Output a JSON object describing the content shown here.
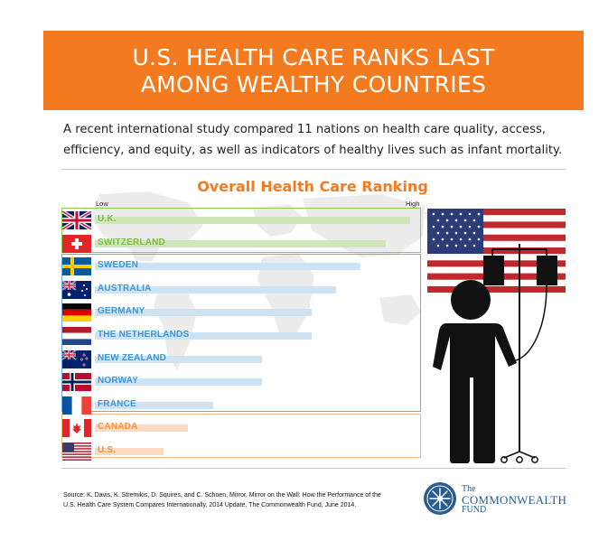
{
  "header": {
    "title_line1": "U.S. HEALTH CARE RANKS LAST",
    "title_line2": "AMONG WEALTHY COUNTRIES"
  },
  "intro": {
    "line1": "A recent international study compared 11 nations on health care quality, access,",
    "line2": "efficiency, and equity, as well as indicators of healthy lives such as infant mortality."
  },
  "chart_data": {
    "type": "bar",
    "title": "Overall Health Care Ranking",
    "axis_low_label": "Low",
    "axis_high_label": "High",
    "scale": "rank",
    "categories": [
      "U.K.",
      "SWITZERLAND",
      "SWEDEN",
      "AUSTRALIA",
      "GERMANY",
      "THE NETHERLANDS",
      "NEW ZEALAND",
      "NORWAY",
      "FRANCE",
      "CANADA",
      "U.S."
    ],
    "values": [
      1,
      2,
      3,
      4,
      5,
      5,
      7,
      7,
      9,
      10,
      11
    ],
    "rows": [
      {
        "country": "U.K.",
        "flag": "uk-flag-icon",
        "rank": 1,
        "group": "top"
      },
      {
        "country": "SWITZERLAND",
        "flag": "switzerland-flag-icon",
        "rank": 2,
        "group": "top"
      },
      {
        "country": "SWEDEN",
        "flag": "sweden-flag-icon",
        "rank": 3,
        "group": "middle"
      },
      {
        "country": "AUSTRALIA",
        "flag": "australia-flag-icon",
        "rank": 4,
        "group": "middle"
      },
      {
        "country": "GERMANY",
        "flag": "germany-flag-icon",
        "rank": 5,
        "group": "middle"
      },
      {
        "country": "THE NETHERLANDS",
        "flag": "netherlands-flag-icon",
        "rank": 5,
        "group": "middle"
      },
      {
        "country": "NEW ZEALAND",
        "flag": "new-zealand-flag-icon",
        "rank": 7,
        "group": "middle"
      },
      {
        "country": "NORWAY",
        "flag": "norway-flag-icon",
        "rank": 7,
        "group": "middle"
      },
      {
        "country": "FRANCE",
        "flag": "france-flag-icon",
        "rank": 9,
        "group": "middle"
      },
      {
        "country": "CANADA",
        "flag": "canada-flag-icon",
        "rank": 10,
        "group": "bottom"
      },
      {
        "country": "U.S.",
        "flag": "us-flag-icon",
        "rank": 11,
        "group": "bottom"
      }
    ],
    "groups": {
      "top": {
        "bar_color": "#cfe6b7",
        "text_color": "#7cbd42",
        "border_color": "#8ccb53"
      },
      "middle": {
        "bar_color": "#cde3f3",
        "text_color": "#3b96d6",
        "border_color": "#6aaedc"
      },
      "bottom": {
        "bar_color": "#fbdcc2",
        "text_color": "#f0913f",
        "border_color": "#f5b47a"
      }
    }
  },
  "source": {
    "line1": "Source: K. Davis, K. Stremikis, D. Squires, and C. Schoen,  Mirror, Mirror on the Wall: How the Performance of the",
    "line2": "U.S. Health Care System Compares Internationally,  2014 Update, The Commonwealth Fund,  June 2014."
  },
  "logo": {
    "line1": "The",
    "line2": "COMMONWEALTH",
    "line3": "FUND",
    "icon": "commonwealth-fund-seal-icon"
  },
  "colors": {
    "banner": "#f47a20",
    "title_accent": "#f47a20",
    "logo_blue": "#2a5d8f",
    "map_gray": "#ececec"
  }
}
